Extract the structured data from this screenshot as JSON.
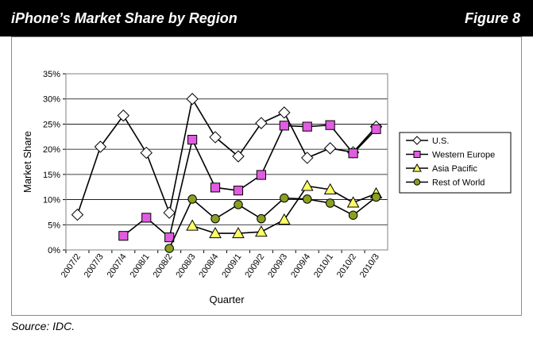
{
  "header": {
    "title": "iPhone’s Market Share by Region",
    "figure_label": "Figure 8"
  },
  "source": "Source: IDC.",
  "chart_data": {
    "type": "line",
    "title": "",
    "xlabel": "Quarter",
    "ylabel": "Market Share",
    "categories": [
      "2007/2",
      "2007/3",
      "2007/4",
      "2008/1",
      "2008/2",
      "2008/3",
      "2008/4",
      "2009/1",
      "2009/2",
      "2009/3",
      "2009/4",
      "2010/1",
      "2010/2",
      "2010/3"
    ],
    "ylim": [
      0,
      35
    ],
    "yticks": [
      "0%",
      "5%",
      "10%",
      "15%",
      "20%",
      "25%",
      "30%",
      "35%"
    ],
    "grid": "horizontal",
    "legend_position": "right",
    "series": [
      {
        "name": "U.S.",
        "marker": "diamond",
        "color": "#ffffff",
        "values": [
          7,
          20.5,
          26.7,
          19.3,
          7.4,
          30.0,
          22.4,
          18.6,
          25.2,
          27.3,
          18.3,
          20.2,
          19.4,
          24.5
        ]
      },
      {
        "name": "Western Europe",
        "marker": "square",
        "color": "#e05ce0",
        "values": [
          null,
          null,
          2.8,
          6.4,
          2.5,
          21.9,
          12.4,
          11.8,
          14.9,
          24.7,
          24.5,
          24.8,
          19.2,
          24.0
        ]
      },
      {
        "name": "Asia Pacific",
        "marker": "triangle",
        "color": "#ffff66",
        "values": [
          null,
          null,
          null,
          null,
          null,
          4.8,
          3.3,
          3.3,
          3.6,
          6.0,
          12.7,
          12.0,
          9.4,
          11.2
        ]
      },
      {
        "name": "Rest of World",
        "marker": "circle",
        "color": "#8aa020",
        "values": [
          null,
          null,
          null,
          null,
          0.3,
          10.1,
          6.2,
          9.0,
          6.2,
          10.3,
          10.1,
          9.3,
          6.9,
          10.5
        ]
      }
    ]
  }
}
